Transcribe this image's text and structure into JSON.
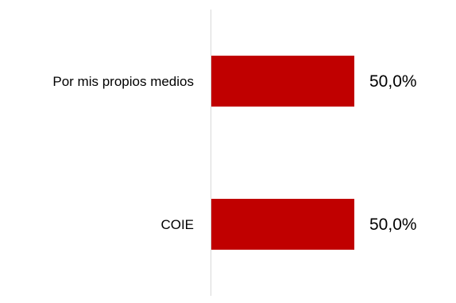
{
  "chart_data": {
    "type": "bar",
    "orientation": "horizontal",
    "categories": [
      "Por mis propios medios",
      "COIE"
    ],
    "values": [
      50.0,
      50.0
    ],
    "data_labels": [
      "50,0%",
      "50,0%"
    ],
    "xlim": [
      0,
      100
    ],
    "title": "",
    "xlabel": "",
    "ylabel": "",
    "grid": false,
    "legend": "none",
    "colors": {
      "bar": "#C00000",
      "axis": "#D9D9D9",
      "text": "#000000"
    }
  }
}
